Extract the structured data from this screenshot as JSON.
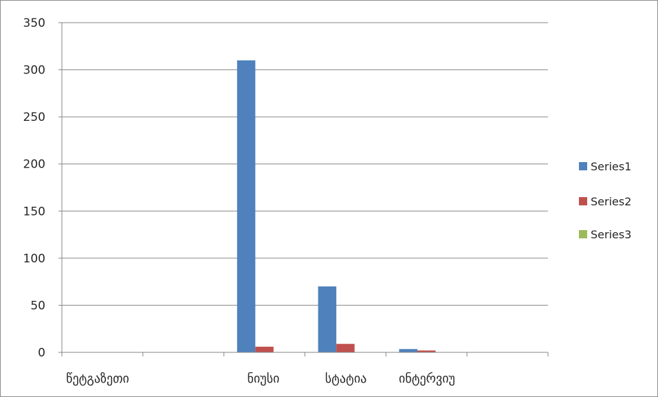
{
  "chart_data": {
    "type": "bar",
    "title": "",
    "xlabel": "",
    "ylabel": "",
    "categories": [
      "წეტგაზეთი",
      "",
      "ნიუსი",
      "სტატია",
      "ინტერვიუ",
      ""
    ],
    "category_labels": [
      "წეტგაზეთი",
      "ნიუსი",
      "სტატია",
      "ინტერვიუ"
    ],
    "series": [
      {
        "name": "Series1",
        "color": "#4f81bd",
        "values": [
          0,
          0,
          310,
          70,
          3.5,
          0
        ]
      },
      {
        "name": "Series2",
        "color": "#c0504d",
        "values": [
          0,
          0,
          6,
          9,
          2,
          0
        ]
      },
      {
        "name": "Series3",
        "color": "#9bbb59",
        "values": [
          0,
          0,
          0,
          0,
          0,
          0
        ]
      }
    ],
    "ylim": [
      0,
      350
    ],
    "yticks": [
      0,
      50,
      100,
      150,
      200,
      250,
      300,
      350
    ],
    "grid": true,
    "legend_position": "right"
  }
}
